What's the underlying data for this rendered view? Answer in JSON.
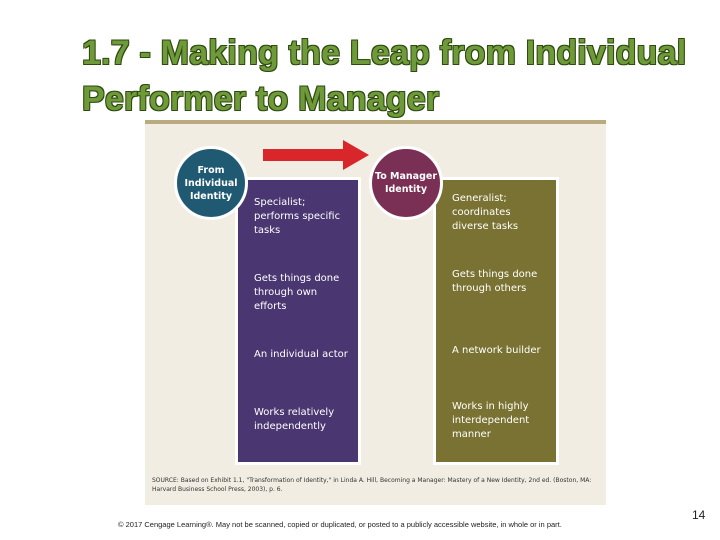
{
  "slide": {
    "title": "1.7 - Making the Leap from Individual Performer to Manager",
    "page_number": "14",
    "copyright": "© 2017 Cengage Learning®. May not be scanned, copied or duplicated, or posted to a publicly accessible website, in whole or in part."
  },
  "figure": {
    "from_circle": "From Individual Identity",
    "to_circle": "To Manager Identity",
    "left_items": [
      "Specialist; performs specific tasks",
      "Gets things done through own efforts",
      "An individual actor",
      "Works relatively independently"
    ],
    "right_items": [
      "Generalist; coordinates diverse tasks",
      "Gets things done through others",
      "A network builder",
      "Works in highly interdependent manner"
    ],
    "source": "SOURCE: Based on Exhibit 1.1, \"Transformation of Identity,\" in Linda A. Hill, Becoming a Manager: Mastery of a New Identity, 2nd ed. (Boston, MA: Harvard Business School Press, 2003), p. 6.",
    "colors": {
      "from_circle": "#1f5a72",
      "to_circle": "#7a2f55",
      "left_column": "#4a3671",
      "right_column": "#7a7232",
      "arrow": "#d9262a",
      "title": "#6e9a3a",
      "background": "#f1ede3"
    }
  }
}
